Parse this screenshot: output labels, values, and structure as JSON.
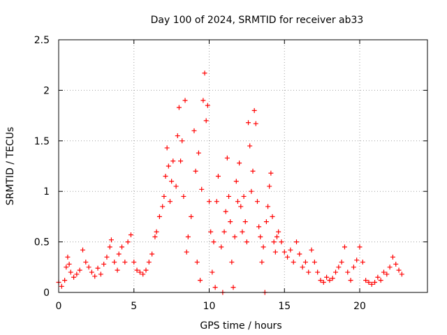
{
  "chart_data": {
    "type": "scatter",
    "title": "Day 100 of 2024, SRMTID for receiver ab33",
    "xlabel": "GPS time / hours",
    "ylabel": "SRMTID / TECUs",
    "xlim": [
      0,
      24.5
    ],
    "ylim": [
      0,
      2.5
    ],
    "x_ticks": [
      0,
      5,
      10,
      15,
      20
    ],
    "x_tick_labels": [
      "0",
      "5",
      "10",
      "15",
      "20"
    ],
    "y_ticks": [
      0,
      0.5,
      1,
      1.5,
      2,
      2.5
    ],
    "y_tick_labels": [
      "0",
      "0.5",
      "1",
      "1.5",
      "2",
      "2.5"
    ],
    "grid": true,
    "marker": "+",
    "color": "#ff0000",
    "series": [
      {
        "name": "SRMTID",
        "points": [
          [
            0.0,
            0.1
          ],
          [
            0.2,
            0.06
          ],
          [
            0.4,
            0.12
          ],
          [
            0.5,
            0.25
          ],
          [
            0.6,
            0.35
          ],
          [
            0.7,
            0.28
          ],
          [
            0.8,
            0.2
          ],
          [
            1.0,
            0.15
          ],
          [
            1.2,
            0.18
          ],
          [
            1.4,
            0.22
          ],
          [
            1.6,
            0.42
          ],
          [
            1.8,
            0.3
          ],
          [
            2.0,
            0.25
          ],
          [
            2.2,
            0.2
          ],
          [
            2.4,
            0.16
          ],
          [
            2.6,
            0.24
          ],
          [
            2.8,
            0.18
          ],
          [
            3.0,
            0.28
          ],
          [
            3.2,
            0.35
          ],
          [
            3.4,
            0.45
          ],
          [
            3.5,
            0.52
          ],
          [
            3.7,
            0.3
          ],
          [
            3.9,
            0.22
          ],
          [
            4.0,
            0.38
          ],
          [
            4.2,
            0.45
          ],
          [
            4.4,
            0.3
          ],
          [
            4.6,
            0.5
          ],
          [
            4.8,
            0.57
          ],
          [
            5.0,
            0.3
          ],
          [
            5.2,
            0.22
          ],
          [
            5.4,
            0.2
          ],
          [
            5.6,
            0.18
          ],
          [
            5.8,
            0.22
          ],
          [
            6.0,
            0.3
          ],
          [
            6.2,
            0.38
          ],
          [
            6.4,
            0.55
          ],
          [
            6.5,
            0.6
          ],
          [
            6.7,
            0.75
          ],
          [
            6.9,
            0.85
          ],
          [
            7.0,
            0.95
          ],
          [
            7.1,
            1.15
          ],
          [
            7.2,
            1.43
          ],
          [
            7.3,
            1.25
          ],
          [
            7.4,
            0.9
          ],
          [
            7.5,
            1.1
          ],
          [
            7.6,
            1.3
          ],
          [
            7.8,
            1.05
          ],
          [
            7.9,
            1.55
          ],
          [
            8.0,
            1.83
          ],
          [
            8.1,
            1.3
          ],
          [
            8.2,
            1.5
          ],
          [
            8.3,
            0.95
          ],
          [
            8.4,
            1.9
          ],
          [
            8.5,
            0.4
          ],
          [
            8.6,
            0.55
          ],
          [
            8.8,
            0.75
          ],
          [
            9.0,
            1.6
          ],
          [
            9.1,
            1.2
          ],
          [
            9.2,
            0.3
          ],
          [
            9.3,
            1.38
          ],
          [
            9.4,
            0.12
          ],
          [
            9.5,
            1.02
          ],
          [
            9.6,
            1.9
          ],
          [
            9.7,
            2.17
          ],
          [
            9.8,
            1.7
          ],
          [
            9.9,
            1.85
          ],
          [
            10.0,
            0.9
          ],
          [
            10.1,
            0.6
          ],
          [
            10.2,
            0.2
          ],
          [
            10.3,
            0.5
          ],
          [
            10.4,
            0.05
          ],
          [
            10.5,
            0.9
          ],
          [
            10.6,
            1.15
          ],
          [
            10.8,
            0.45
          ],
          [
            10.9,
            0.0
          ],
          [
            11.0,
            0.6
          ],
          [
            11.1,
            0.8
          ],
          [
            11.2,
            1.33
          ],
          [
            11.3,
            0.95
          ],
          [
            11.4,
            0.7
          ],
          [
            11.5,
            0.3
          ],
          [
            11.6,
            0.05
          ],
          [
            11.7,
            0.55
          ],
          [
            11.8,
            1.1
          ],
          [
            11.9,
            0.9
          ],
          [
            12.0,
            1.28
          ],
          [
            12.1,
            0.85
          ],
          [
            12.2,
            0.6
          ],
          [
            12.3,
            0.95
          ],
          [
            12.4,
            0.7
          ],
          [
            12.5,
            0.5
          ],
          [
            12.6,
            1.68
          ],
          [
            12.7,
            1.45
          ],
          [
            12.8,
            1.0
          ],
          [
            12.9,
            1.2
          ],
          [
            13.0,
            1.8
          ],
          [
            13.1,
            1.67
          ],
          [
            13.2,
            0.9
          ],
          [
            13.3,
            0.65
          ],
          [
            13.4,
            0.55
          ],
          [
            13.5,
            0.3
          ],
          [
            13.6,
            0.45
          ],
          [
            13.7,
            0.0
          ],
          [
            13.8,
            0.7
          ],
          [
            13.9,
            0.85
          ],
          [
            14.0,
            1.05
          ],
          [
            14.1,
            1.18
          ],
          [
            14.2,
            0.75
          ],
          [
            14.3,
            0.5
          ],
          [
            14.4,
            0.4
          ],
          [
            14.5,
            0.55
          ],
          [
            14.6,
            0.6
          ],
          [
            14.8,
            0.5
          ],
          [
            15.0,
            0.4
          ],
          [
            15.2,
            0.35
          ],
          [
            15.4,
            0.42
          ],
          [
            15.6,
            0.3
          ],
          [
            15.8,
            0.5
          ],
          [
            16.0,
            0.38
          ],
          [
            16.2,
            0.25
          ],
          [
            16.4,
            0.3
          ],
          [
            16.6,
            0.2
          ],
          [
            16.8,
            0.42
          ],
          [
            17.0,
            0.3
          ],
          [
            17.2,
            0.2
          ],
          [
            17.4,
            0.12
          ],
          [
            17.6,
            0.1
          ],
          [
            17.8,
            0.15
          ],
          [
            18.0,
            0.12
          ],
          [
            18.2,
            0.14
          ],
          [
            18.4,
            0.2
          ],
          [
            18.6,
            0.25
          ],
          [
            18.8,
            0.3
          ],
          [
            19.0,
            0.45
          ],
          [
            19.2,
            0.2
          ],
          [
            19.4,
            0.12
          ],
          [
            19.6,
            0.25
          ],
          [
            19.8,
            0.32
          ],
          [
            20.0,
            0.45
          ],
          [
            20.2,
            0.3
          ],
          [
            20.4,
            0.12
          ],
          [
            20.6,
            0.1
          ],
          [
            20.8,
            0.08
          ],
          [
            21.0,
            0.1
          ],
          [
            21.2,
            0.15
          ],
          [
            21.4,
            0.12
          ],
          [
            21.6,
            0.2
          ],
          [
            21.8,
            0.18
          ],
          [
            22.0,
            0.25
          ],
          [
            22.2,
            0.35
          ],
          [
            22.4,
            0.28
          ],
          [
            22.6,
            0.22
          ],
          [
            22.8,
            0.18
          ]
        ]
      }
    ]
  }
}
